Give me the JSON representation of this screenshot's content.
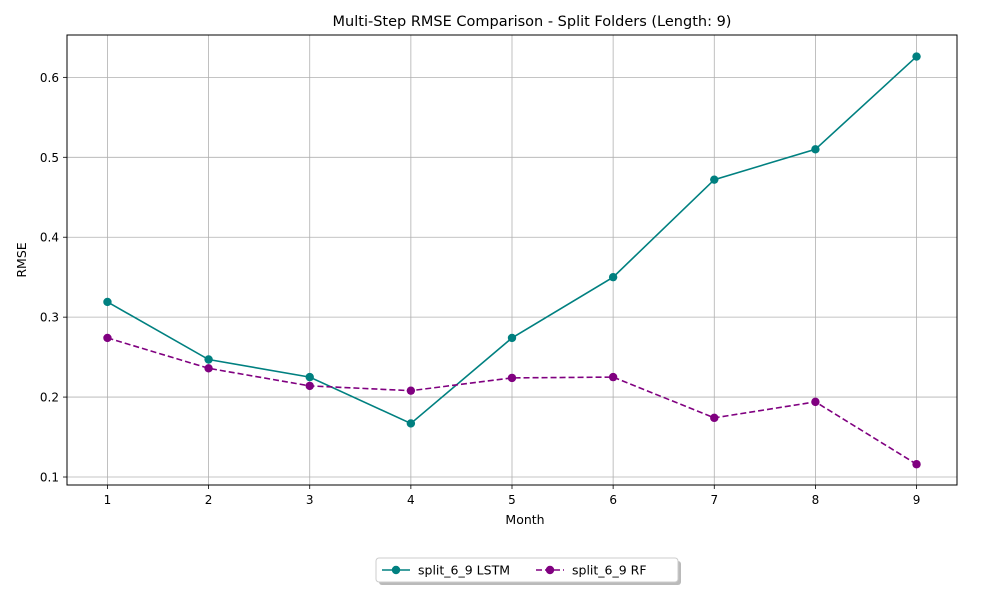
{
  "chart_data": {
    "type": "line",
    "title": "Multi-Step RMSE Comparison - Split Folders (Length: 9)",
    "xlabel": "Month",
    "ylabel": "RMSE",
    "x": [
      1,
      2,
      3,
      4,
      5,
      6,
      7,
      8,
      9
    ],
    "xlim": [
      0.6,
      9.4
    ],
    "ylim": [
      0.09,
      0.653
    ],
    "yticks": [
      0.1,
      0.2,
      0.3,
      0.4,
      0.5,
      0.6
    ],
    "ytick_labels": [
      "0.1",
      "0.2",
      "0.3",
      "0.4",
      "0.5",
      "0.6"
    ],
    "xtick_labels": [
      "1",
      "2",
      "3",
      "4",
      "5",
      "6",
      "7",
      "8",
      "9"
    ],
    "grid": true,
    "legend_position": "bottom-center",
    "series": [
      {
        "name": "split_6_9 LSTM",
        "color": "#008080",
        "line_style": "solid",
        "marker": "circle",
        "values": [
          0.319,
          0.247,
          0.225,
          0.167,
          0.274,
          0.35,
          0.472,
          0.51,
          0.626
        ]
      },
      {
        "name": "split_6_9 RF",
        "color": "#800080",
        "line_style": "dashed",
        "marker": "circle",
        "values": [
          0.274,
          0.236,
          0.214,
          0.208,
          0.224,
          0.225,
          0.174,
          0.194,
          0.116
        ]
      }
    ]
  }
}
